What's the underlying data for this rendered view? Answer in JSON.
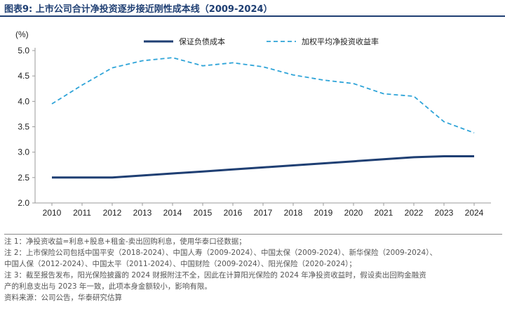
{
  "header": {
    "title": "图表9:   上市公司合计净投资逐步接近刚性成本线（2009-2024）"
  },
  "chart_data": {
    "type": "line",
    "x": [
      "2010",
      "2011",
      "2012",
      "2013",
      "2014",
      "2015",
      "2016",
      "2017",
      "2018",
      "2019",
      "2020",
      "2021",
      "2022",
      "2023",
      "2024"
    ],
    "series": [
      {
        "name": "保证负债成本",
        "style": "solid",
        "color": "#1f3f73",
        "values": [
          2.5,
          2.5,
          2.5,
          2.54,
          2.58,
          2.62,
          2.66,
          2.7,
          2.74,
          2.78,
          2.82,
          2.86,
          2.9,
          2.92,
          2.92
        ]
      },
      {
        "name": "加权平均净投资收益率",
        "style": "dashed",
        "color": "#2fa4d8",
        "values": [
          3.95,
          4.32,
          4.66,
          4.8,
          4.86,
          4.7,
          4.76,
          4.68,
          4.52,
          4.42,
          4.35,
          4.15,
          4.1,
          3.6,
          3.38
        ]
      }
    ],
    "ylabel": "(%)",
    "ylim": [
      2.0,
      5.0
    ],
    "yticks": [
      "2.0",
      "2.5",
      "3.0",
      "3.5",
      "4.0",
      "4.5",
      "5.0"
    ],
    "grid": false,
    "legend": "top"
  },
  "notes": [
    "注 1：净投资收益=利息+股息+租金-卖出回购利息，使用华泰口径数据；",
    "注 2：上市保险公司包括中国平安（2018-2024）、中国人寿（2009-2024）、中国太保（2009-2024）、新华保险（2009-2024）、",
    "中国人保（2012-2024）、中国太平（2011-2024）、中国财险（2009-2024）、阳光保险（2020-2024）；",
    "注 3：截至报告发布，阳光保险披露的 2024 财报附注不全，因此在计算阳光保险的 2024 年净投资收益时，假设卖出回购金融资",
    "产的利息支出与 2023 年一致，此项本身金额较小，影响有限。",
    "资料来源：公司公告，华泰研究估算"
  ]
}
